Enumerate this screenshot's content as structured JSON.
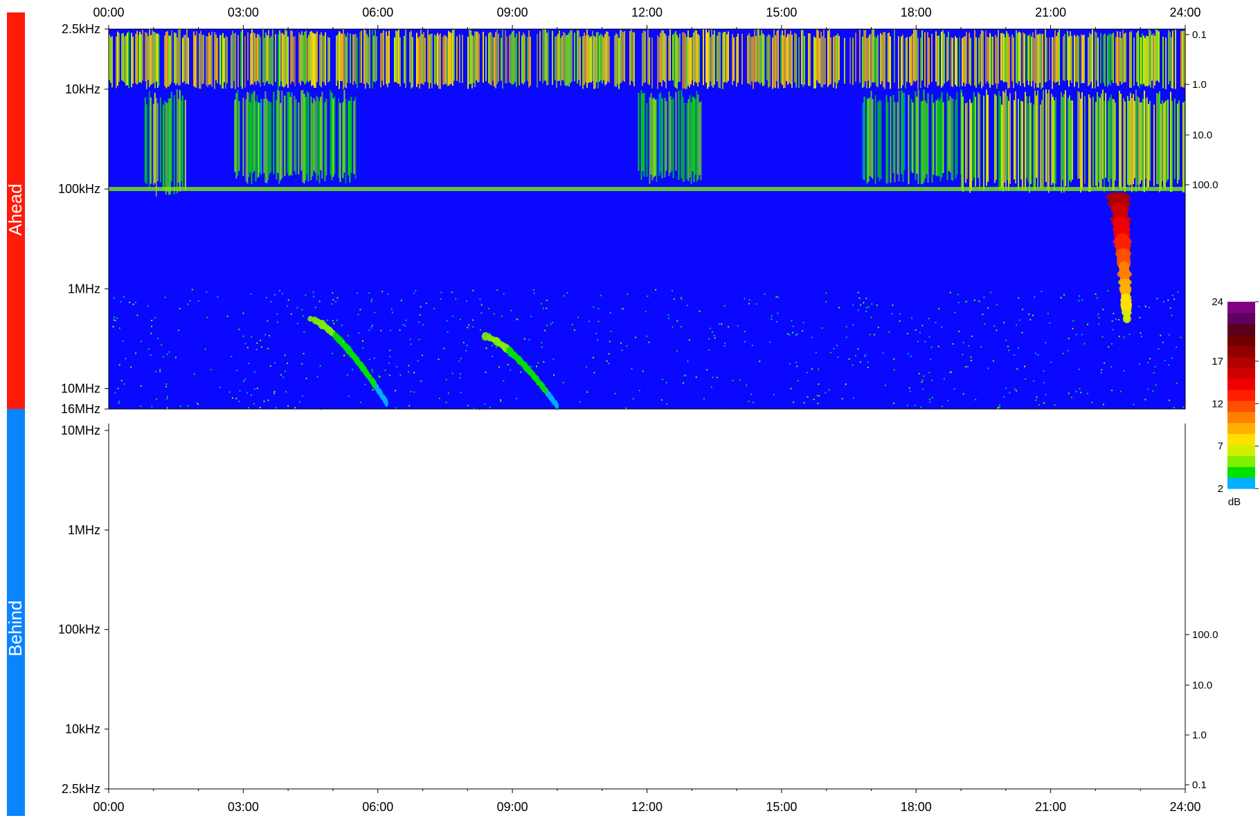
{
  "chart_data": {
    "type": "heatmap",
    "title": "",
    "time_axis": {
      "ticks": [
        "00:00",
        "03:00",
        "06:00",
        "09:00",
        "12:00",
        "15:00",
        "18:00",
        "21:00",
        "24:00"
      ],
      "range_hours": [
        0,
        24
      ]
    },
    "panels": [
      {
        "name": "Ahead",
        "color": "#ff1a0a",
        "freq_scale": "log",
        "freq_range_hz": [
          2500,
          16000000
        ],
        "freq_ticks": [
          {
            "label": "2.5kHz",
            "hz": 2500
          },
          {
            "label": "10kHz",
            "hz": 10000
          },
          {
            "label": "100kHz",
            "hz": 100000
          },
          {
            "label": "1MHz",
            "hz": 1000000
          },
          {
            "label": "10MHz",
            "hz": 10000000
          },
          {
            "label": "16MHz",
            "hz": 16000000
          }
        ],
        "right_ticks": [
          "0.1",
          "1.0",
          "10.0",
          "100.0"
        ],
        "has_data": true,
        "background": "#0a08ff",
        "features": [
          {
            "type": "band",
            "t": [
              0,
              24
            ],
            "f_hz": [
              2500,
              10000
            ],
            "intensity_db": 6
          },
          {
            "type": "band",
            "t": [
              0.8,
              1.7
            ],
            "f_hz": [
              10000,
              120000
            ],
            "intensity_db": 4
          },
          {
            "type": "band",
            "t": [
              2.8,
              5.5
            ],
            "f_hz": [
              10000,
              90000
            ],
            "intensity_db": 3
          },
          {
            "type": "band",
            "t": [
              11.8,
              13.2
            ],
            "f_hz": [
              10000,
              90000
            ],
            "intensity_db": 3
          },
          {
            "type": "band",
            "t": [
              16.8,
              19.0
            ],
            "f_hz": [
              10000,
              90000
            ],
            "intensity_db": 3
          },
          {
            "type": "band",
            "t": [
              19.0,
              24
            ],
            "f_hz": [
              10000,
              110000
            ],
            "intensity_db": 5
          },
          {
            "type": "line",
            "t": [
              0,
              24
            ],
            "f_hz": 100000,
            "intensity_db": 3
          },
          {
            "type": "burst",
            "name": "type III burst",
            "t_start": 22.5,
            "f_start_hz": 120000,
            "t_end": 22.7,
            "f_end_hz": 2000000,
            "peak_db": 15
          },
          {
            "type": "burst",
            "name": "type II burst",
            "t_start": 4.5,
            "f_start_hz": 2000000,
            "t_end": 6.2,
            "f_end_hz": 14000000,
            "peak_db": 3
          },
          {
            "type": "burst",
            "name": "type II burst",
            "t_start": 8.4,
            "f_start_hz": 3000000,
            "t_end": 10.0,
            "f_end_hz": 15000000,
            "peak_db": 3
          }
        ]
      },
      {
        "name": "Behind",
        "color": "#0a84ff",
        "freq_scale": "log",
        "freq_range_hz": [
          2500,
          16000000
        ],
        "freq_ticks": [
          {
            "label": "10MHz",
            "hz": 10000000
          },
          {
            "label": "1MHz",
            "hz": 1000000
          },
          {
            "label": "100kHz",
            "hz": 100000
          },
          {
            "label": "10kHz",
            "hz": 10000
          },
          {
            "label": "2.5kHz",
            "hz": 2500
          }
        ],
        "right_ticks": [
          "100.0",
          "10.0",
          "1.0",
          "0.1"
        ],
        "has_data": false
      }
    ],
    "colorbar": {
      "unit": "dB",
      "range": [
        2,
        24
      ],
      "ticks": [
        "24",
        "17",
        "12",
        "7",
        "2"
      ],
      "colors": [
        "#00b0ff",
        "#00e000",
        "#80f000",
        "#d0f000",
        "#ffe000",
        "#ffb000",
        "#ff8000",
        "#ff5000",
        "#ff2000",
        "#f00000",
        "#d00000",
        "#b00000",
        "#900000",
        "#700000",
        "#5a0020",
        "#600060",
        "#800080"
      ]
    }
  }
}
